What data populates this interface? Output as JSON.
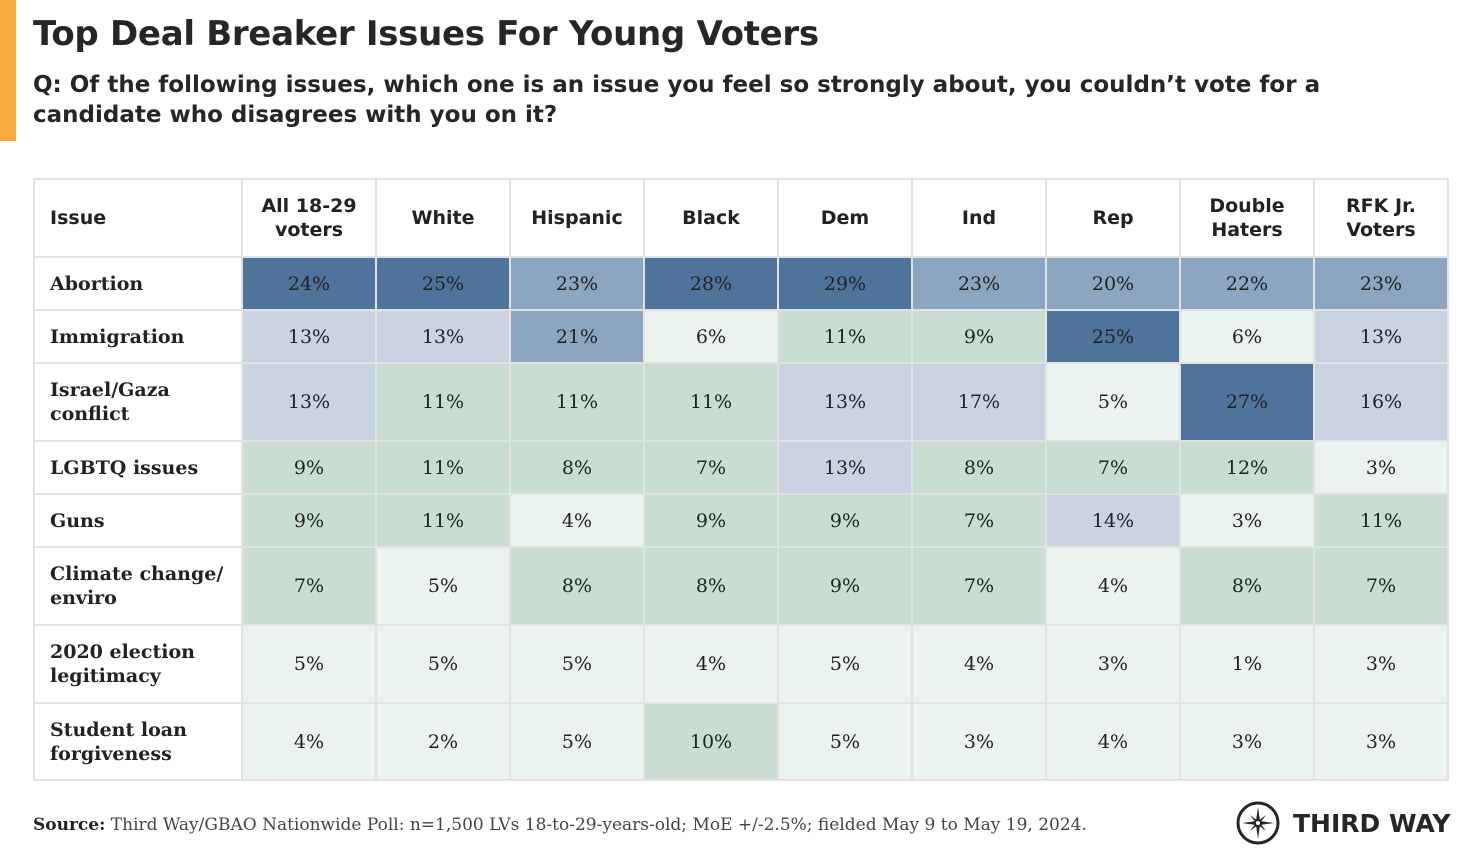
{
  "title": "Top Deal Breaker Issues For Young Voters",
  "subtitle": "Q: Of the following issues, which one is an issue you feel so strongly about, you couldn’t vote for a candidate who disagrees with you on it?",
  "colors": {
    "accent_bar": "#f9ac3b",
    "dark": "#4f749b",
    "mid": "#8ca5c1",
    "light_blue": "#c9d3e2",
    "green": "#c9ddd2",
    "pale": "#eaf3ee"
  },
  "chart_data": {
    "type": "table",
    "columns": [
      "Issue",
      "All 18-29 voters",
      "White",
      "Hispanic",
      "Black",
      "Dem",
      "Ind",
      "Rep",
      "Double Haters",
      "RFK Jr. Voters"
    ],
    "rows": [
      {
        "issue": "Abortion",
        "values": [
          "24%",
          "25%",
          "23%",
          "28%",
          "29%",
          "23%",
          "20%",
          "22%",
          "23%"
        ]
      },
      {
        "issue": "Immigration",
        "values": [
          "13%",
          "13%",
          "21%",
          "6%",
          "11%",
          "9%",
          "25%",
          "6%",
          "13%"
        ]
      },
      {
        "issue": "Israel/Gaza conflict",
        "values": [
          "13%",
          "11%",
          "11%",
          "11%",
          "13%",
          "17%",
          "5%",
          "27%",
          "16%"
        ]
      },
      {
        "issue": "LGBTQ issues",
        "values": [
          "9%",
          "11%",
          "8%",
          "7%",
          "13%",
          "8%",
          "7%",
          "12%",
          "3%"
        ]
      },
      {
        "issue": "Guns",
        "values": [
          "9%",
          "11%",
          "4%",
          "9%",
          "9%",
          "7%",
          "14%",
          "3%",
          "11%"
        ]
      },
      {
        "issue": "Climate change/ enviro",
        "values": [
          "7%",
          "5%",
          "8%",
          "8%",
          "9%",
          "7%",
          "4%",
          "8%",
          "7%"
        ]
      },
      {
        "issue": "2020 election legitimacy",
        "values": [
          "5%",
          "5%",
          "5%",
          "4%",
          "5%",
          "4%",
          "3%",
          "1%",
          "3%"
        ]
      },
      {
        "issue": "Student loan forgiveness",
        "values": [
          "4%",
          "2%",
          "5%",
          "10%",
          "5%",
          "3%",
          "4%",
          "3%",
          "3%"
        ]
      }
    ]
  },
  "source_label": "Source:",
  "source_text": " Third Way/GBAO Nationwide Poll: n=1,500 LVs 18-to-29-years-old; MoE +/-2.5%; fielded May 9 to May 19, 2024.",
  "logo_text": "THIRD WAY"
}
